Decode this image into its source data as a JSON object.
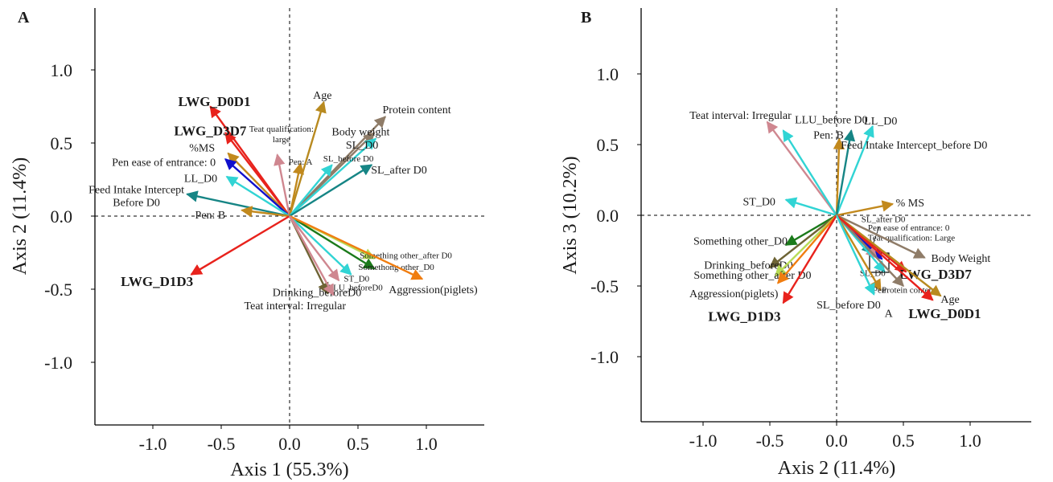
{
  "chart_data": [
    {
      "type": "scatter",
      "panel": "A",
      "xlabel": "Axis 1 (55.3%)",
      "ylabel": "Axis 2 (11.4%)",
      "xlim": [
        -1.42,
        1.42
      ],
      "ylim": [
        -1.42,
        1.42
      ],
      "xticks": [
        -1.0,
        -0.5,
        0.0,
        0.5,
        1.0
      ],
      "yticks": [
        1.0,
        0.5,
        0.0,
        -0.5,
        -1.0
      ],
      "tick_labels_x": [
        "-1.0",
        "-0.5",
        "0.0",
        "0.5",
        "1.0"
      ],
      "tick_labels_y": [
        "1.0",
        "0.5",
        "0.0",
        "-0.5",
        "-1.0"
      ],
      "vectors": [
        {
          "label": "LWG_D0D1",
          "x": -0.58,
          "y": 0.75,
          "color": "#e8221c",
          "style": "bold",
          "lx": -0.55,
          "ly": 0.78
        },
        {
          "label": "LWG_D3D7",
          "x": -0.47,
          "y": 0.57,
          "color": "#e8221c",
          "style": "bold",
          "lx": -0.58,
          "ly": 0.58
        },
        {
          "label": "%MS",
          "x": -0.45,
          "y": 0.43,
          "color": "#c2891d",
          "lx": -0.64,
          "ly": 0.47
        },
        {
          "label": "Pen ease of entrance: 0",
          "x": -0.47,
          "y": 0.39,
          "color": "#1010cc",
          "lx": -0.92,
          "ly": 0.37
        },
        {
          "label": "LL_D0",
          "x": -0.46,
          "y": 0.27,
          "color": "#31d4d4",
          "lx": -0.65,
          "ly": 0.26
        },
        {
          "label": "Feed Intake Intercept\nBefore D0",
          "x": -0.75,
          "y": 0.15,
          "color": "#168585",
          "lx": -1.12,
          "ly": 0.14
        },
        {
          "label": "Pen: B",
          "x": -0.35,
          "y": 0.04,
          "color": "#c2891d",
          "lx": -0.58,
          "ly": 0.01
        },
        {
          "label": "LWG_D1D3",
          "x": -0.72,
          "y": -0.4,
          "color": "#e8221c",
          "style": "bold",
          "lx": -0.97,
          "ly": -0.45
        },
        {
          "label": "Teat qualification:\nlarge",
          "x": -0.09,
          "y": 0.42,
          "color": "#cf8790",
          "style": "small",
          "lx": -0.06,
          "ly": 0.57
        },
        {
          "label": "Age",
          "x": 0.25,
          "y": 0.78,
          "color": "#b88a20",
          "lx": 0.24,
          "ly": 0.83
        },
        {
          "label": "Pen: A",
          "x": 0.08,
          "y": 0.36,
          "color": "#c2891d",
          "style": "small",
          "lx": 0.08,
          "ly": 0.38
        },
        {
          "label": "Protein content",
          "x": 0.7,
          "y": 0.68,
          "color": "#8f7c68",
          "lx": 0.93,
          "ly": 0.73
        },
        {
          "label": "Body weight",
          "x": 0.62,
          "y": 0.57,
          "color": "#8f7c68",
          "lx": 0.52,
          "ly": 0.58
        },
        {
          "label": "SL_D0",
          "x": 0.63,
          "y": 0.53,
          "color": "#31d4d4",
          "lx": 0.53,
          "ly": 0.49
        },
        {
          "label": "SL_before D0",
          "x": 0.31,
          "y": 0.35,
          "color": "#31d4d4",
          "style": "small",
          "lx": 0.43,
          "ly": 0.4
        },
        {
          "label": "SL_after D0",
          "x": 0.6,
          "y": 0.35,
          "color": "#168585",
          "lx": 0.8,
          "ly": 0.32
        },
        {
          "label": "Something other_after D0",
          "x": 0.62,
          "y": -0.29,
          "color": "#b8dc55",
          "style": "small",
          "lx": 0.85,
          "ly": -0.26
        },
        {
          "label": "Somethong other_D0",
          "x": 0.62,
          "y": -0.36,
          "color": "#1b7a1b",
          "style": "small",
          "lx": 0.78,
          "ly": -0.34
        },
        {
          "label": "ST_D0",
          "x": 0.45,
          "y": -0.4,
          "color": "#31d4d4",
          "style": "small",
          "lx": 0.49,
          "ly": -0.42
        },
        {
          "label": "Aggression(piglets)",
          "x": 0.97,
          "y": -0.43,
          "color": "#f07d10",
          "lx": 1.05,
          "ly": -0.5
        },
        {
          "label": "LLU_beforeD0",
          "x": 0.36,
          "y": -0.44,
          "color": "#cf8790",
          "style": "small",
          "lx": 0.48,
          "ly": -0.48
        },
        {
          "label": "Drinking_beforeD0",
          "x": 0.28,
          "y": -0.53,
          "color": "#6e6435",
          "lx": 0.2,
          "ly": -0.52
        },
        {
          "label": "Teat interval: Irregular",
          "x": 0.32,
          "y": -0.54,
          "color": "#cf8790",
          "lx": 0.04,
          "ly": -0.61
        }
      ]
    },
    {
      "type": "scatter",
      "panel": "B",
      "xlabel": "Axis 2 (11.4%)",
      "ylabel": "Axis 3 (10.2%)",
      "xlim": [
        -1.42,
        1.42
      ],
      "ylim": [
        -1.42,
        1.42
      ],
      "xticks": [
        -1.0,
        -0.5,
        0.0,
        0.5,
        1.0
      ],
      "yticks": [
        1.0,
        0.5,
        0.0,
        -0.5,
        -1.0
      ],
      "tick_labels_x": [
        "-1.0",
        "-0.5",
        "0.0",
        "0.5",
        "1.0"
      ],
      "tick_labels_y": [
        "1.0",
        "0.5",
        "0.0",
        "-0.5",
        "-1.0"
      ],
      "vectors": [
        {
          "label": "Teat interval: Irregular",
          "x": -0.52,
          "y": 0.66,
          "color": "#cf8790",
          "lx": -0.72,
          "ly": 0.71
        },
        {
          "label": "LLU_before D0",
          "x": -0.4,
          "y": 0.6,
          "color": "#31d4d4",
          "lx": -0.04,
          "ly": 0.68
        },
        {
          "label": "LL_D0",
          "x": 0.27,
          "y": 0.63,
          "color": "#31d4d4",
          "lx": 0.33,
          "ly": 0.67
        },
        {
          "label": "Pen: B",
          "x": 0.02,
          "y": 0.54,
          "color": "#c2891d",
          "lx": -0.06,
          "ly": 0.57
        },
        {
          "label": "Feed Intake Intercept_before D0",
          "x": 0.11,
          "y": 0.6,
          "color": "#168585",
          "lx": 0.58,
          "ly": 0.5
        },
        {
          "label": "ST_D0",
          "x": -0.38,
          "y": 0.11,
          "color": "#31d4d4",
          "lx": -0.58,
          "ly": 0.1
        },
        {
          "label": "% MS",
          "x": 0.42,
          "y": 0.08,
          "color": "#c2891d",
          "lx": 0.55,
          "ly": 0.09
        },
        {
          "label": "Something other_D0",
          "x": -0.38,
          "y": -0.21,
          "color": "#1b7a1b",
          "lx": -0.72,
          "ly": -0.18
        },
        {
          "label": "Drinking_beforeD0",
          "x": -0.5,
          "y": -0.37,
          "color": "#6e6435",
          "lx": -0.66,
          "ly": -0.35
        },
        {
          "label": "Something other_after D0",
          "x": -0.46,
          "y": -0.43,
          "color": "#b8dc55",
          "lx": -0.63,
          "ly": -0.42
        },
        {
          "label": "Aggression(piglets)",
          "x": -0.44,
          "y": -0.48,
          "color": "#f07d10",
          "lx": -0.77,
          "ly": -0.55
        },
        {
          "label": "LWG_D1D3",
          "x": -0.4,
          "y": -0.62,
          "color": "#e8221c",
          "style": "bold",
          "lx": -0.69,
          "ly": -0.72
        },
        {
          "label": "SL_after D0",
          "x": 0.27,
          "y": -0.27,
          "color": "#168585",
          "style": "small",
          "lx": 0.35,
          "ly": -0.02
        },
        {
          "label": "Pen ease of entrance: 0",
          "x": 0.34,
          "y": -0.31,
          "color": "#1010cc",
          "style": "small",
          "lx": 0.54,
          "ly": -0.08
        },
        {
          "label": "Teat qualification: Large",
          "x": 0.3,
          "y": -0.3,
          "color": "#cf8790",
          "style": "small",
          "lx": 0.56,
          "ly": -0.15
        },
        {
          "label": "Body Weight",
          "x": 0.66,
          "y": -0.3,
          "color": "#8f7c68",
          "lx": 0.93,
          "ly": -0.3
        },
        {
          "label": "LWG_D3D7",
          "x": 0.52,
          "y": -0.4,
          "color": "#e8221c",
          "style": "bold",
          "lx": 0.74,
          "ly": -0.42
        },
        {
          "label": "SL_D0",
          "x": 0.36,
          "y": -0.4,
          "color": "#31d4d4",
          "style": "small",
          "lx": 0.27,
          "ly": -0.4
        },
        {
          "label": "Pen",
          "x": 0.33,
          "y": -0.53,
          "color": "#c2891d",
          "style": "small",
          "lx": 0.32,
          "ly": -0.52
        },
        {
          "label": "Protein content",
          "x": 0.5,
          "y": -0.5,
          "color": "#8f7c68",
          "style": "small",
          "lx": 0.54,
          "ly": -0.52
        },
        {
          "label": "Age",
          "x": 0.78,
          "y": -0.57,
          "color": "#b88a20",
          "lx": 0.85,
          "ly": -0.59
        },
        {
          "label": "LWG_D0D1",
          "x": 0.72,
          "y": -0.6,
          "color": "#e8221c",
          "style": "bold",
          "lx": 0.81,
          "ly": -0.7
        },
        {
          "label": "SL_before D0",
          "x": 0.28,
          "y": -0.56,
          "color": "#31d4d4",
          "lx": 0.09,
          "ly": -0.63
        },
        {
          "label": "A",
          "x": 0.0,
          "y": 0.0,
          "color": "#1a1a1a",
          "style": "noarrow",
          "lx": 0.39,
          "ly": -0.69
        }
      ]
    }
  ]
}
